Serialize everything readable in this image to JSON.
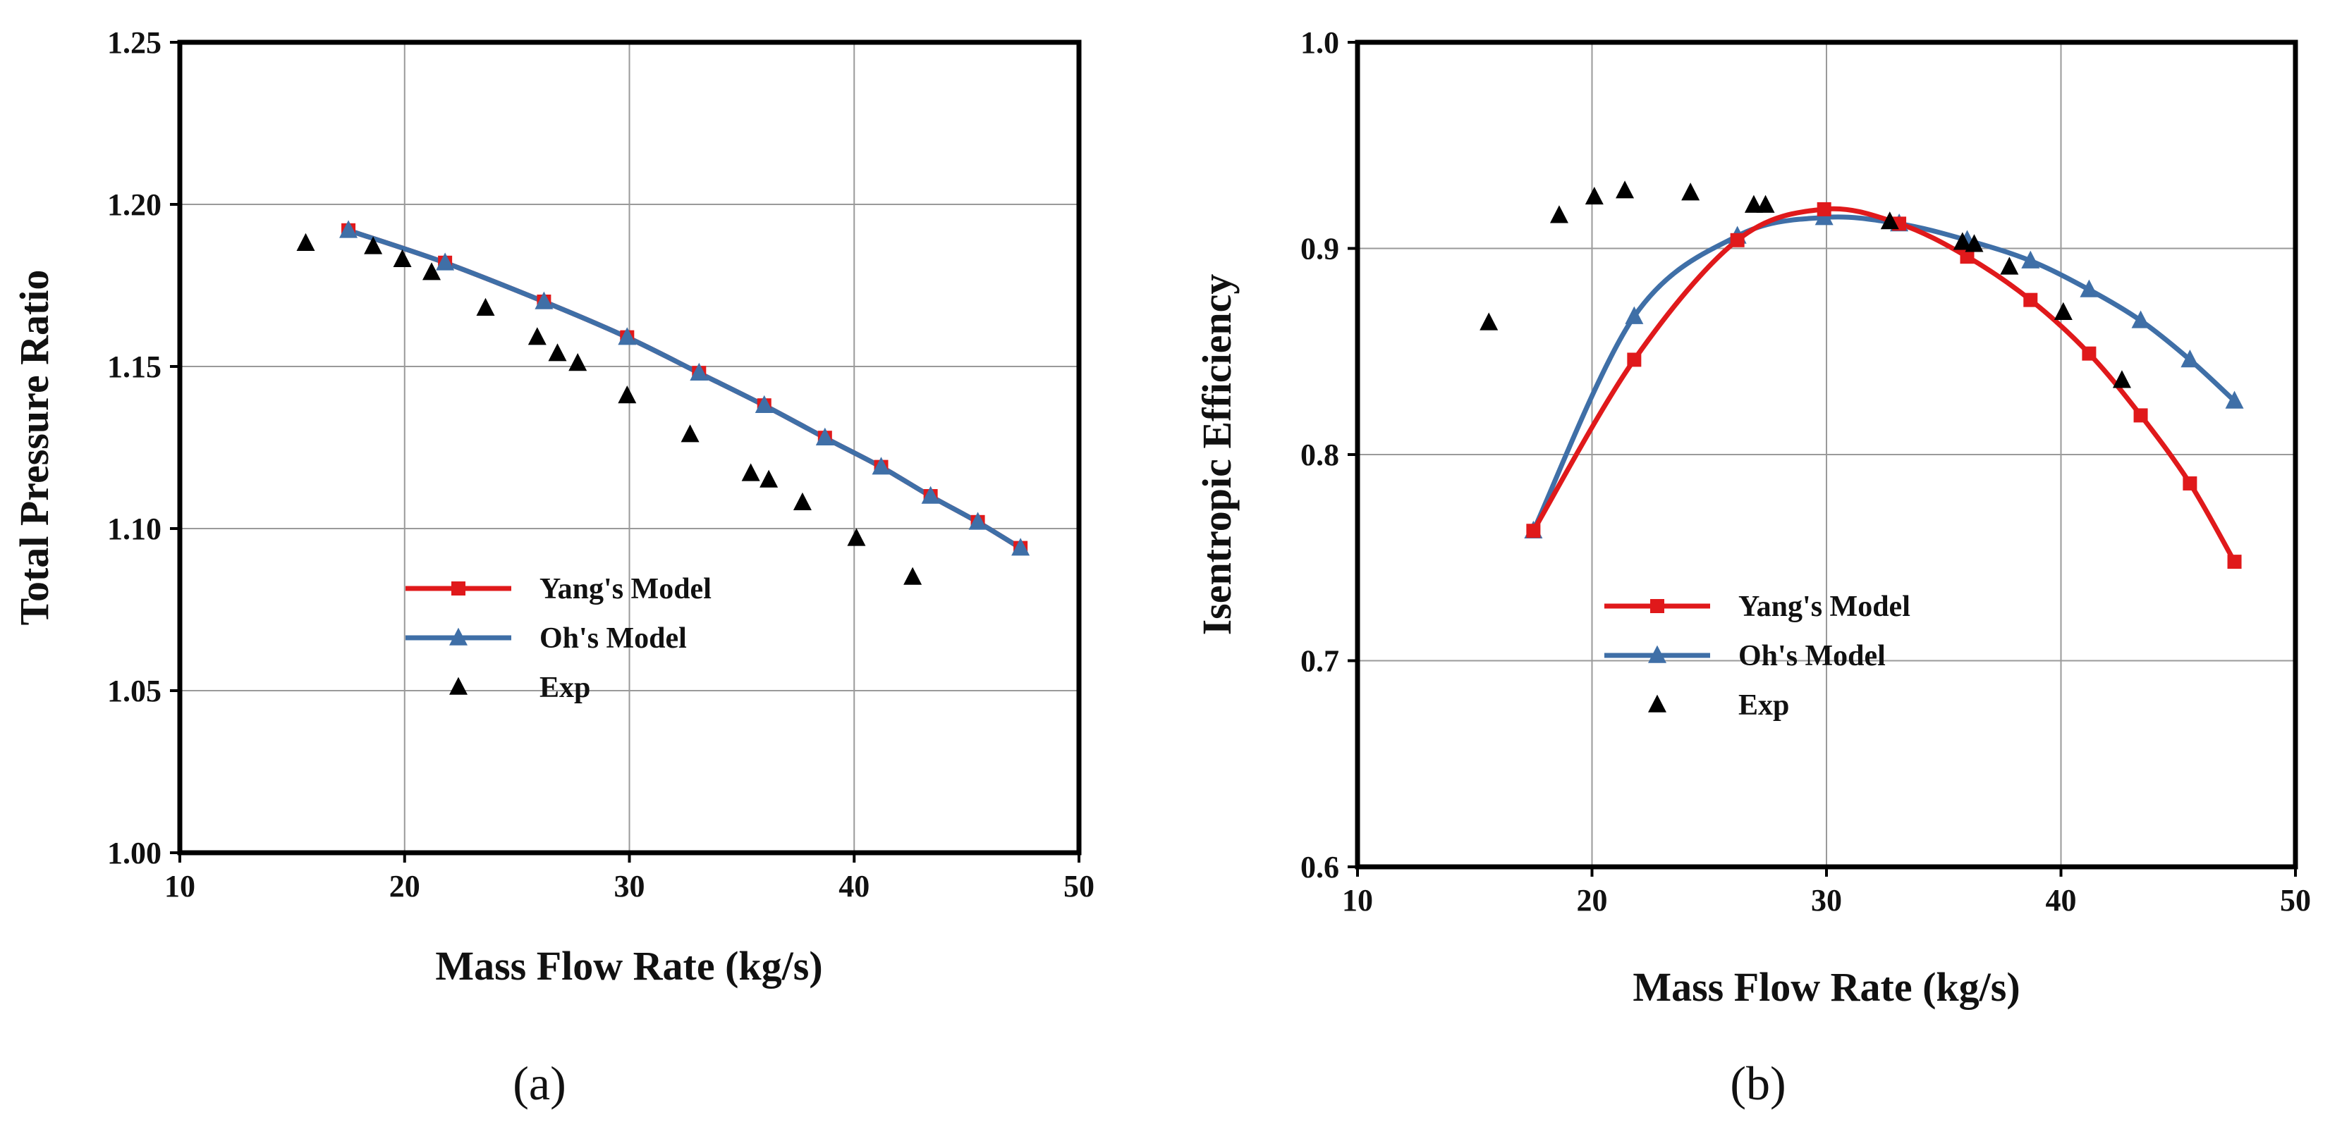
{
  "chart_data": [
    {
      "type": "line",
      "panel_label": "(a)",
      "xlabel": "Mass Flow Rate (kg/s)",
      "ylabel": "Total Pressure Ratio",
      "xlim": [
        10,
        50
      ],
      "ylim": [
        1.0,
        1.25
      ],
      "xticks": [
        10,
        20,
        30,
        40,
        50
      ],
      "yticks": [
        1.0,
        1.05,
        1.1,
        1.15,
        1.2,
        1.25
      ],
      "xtick_labels": [
        "10",
        "20",
        "30",
        "40",
        "50"
      ],
      "ytick_labels": [
        "1.00",
        "1.05",
        "1.10",
        "1.15",
        "1.20",
        "1.25"
      ],
      "grid": true,
      "legend_position": "center-left",
      "series": [
        {
          "name": "Yang's Model",
          "color": "#e0191b",
          "marker": "square",
          "x": [
            17.5,
            21.8,
            26.2,
            29.9,
            33.1,
            36.0,
            38.7,
            41.2,
            43.4,
            45.5,
            47.4
          ],
          "y": [
            1.192,
            1.182,
            1.17,
            1.159,
            1.148,
            1.138,
            1.128,
            1.119,
            1.11,
            1.102,
            1.094
          ]
        },
        {
          "name": "Oh's Model",
          "color": "#3f6fa7",
          "marker": "triangle",
          "x": [
            17.5,
            21.8,
            26.2,
            29.9,
            33.1,
            36.0,
            38.7,
            41.2,
            43.4,
            45.5,
            47.4
          ],
          "y": [
            1.192,
            1.182,
            1.17,
            1.159,
            1.148,
            1.138,
            1.128,
            1.119,
            1.11,
            1.102,
            1.094
          ]
        },
        {
          "name": "Exp",
          "color": "#000000",
          "marker": "triangle",
          "scatter_only": true,
          "x": [
            15.6,
            18.6,
            19.9,
            21.2,
            23.6,
            25.9,
            26.8,
            27.7,
            29.9,
            32.7,
            35.4,
            36.2,
            37.7,
            40.1,
            42.6
          ],
          "y": [
            1.188,
            1.187,
            1.183,
            1.179,
            1.168,
            1.159,
            1.154,
            1.151,
            1.141,
            1.129,
            1.117,
            1.115,
            1.108,
            1.097,
            1.085
          ]
        }
      ]
    },
    {
      "type": "line",
      "panel_label": "(b)",
      "xlabel": "Mass Flow Rate (kg/s)",
      "ylabel": "Isentropic Efficiency",
      "xlim": [
        10,
        50
      ],
      "ylim": [
        0.6,
        1.0
      ],
      "xticks": [
        10,
        20,
        30,
        40,
        50
      ],
      "yticks": [
        0.6,
        0.7,
        0.8,
        0.9,
        1.0
      ],
      "xtick_labels": [
        "10",
        "20",
        "30",
        "40",
        "50"
      ],
      "ytick_labels": [
        "0.6",
        "0.7",
        "0.8",
        "0.9",
        "1.0"
      ],
      "grid": true,
      "legend_position": "center",
      "series": [
        {
          "name": "Yang's Model",
          "color": "#e0191b",
          "marker": "square",
          "x": [
            17.5,
            21.8,
            26.2,
            29.9,
            33.1,
            36.0,
            38.7,
            41.2,
            43.4,
            45.5,
            47.4
          ],
          "y": [
            0.763,
            0.846,
            0.904,
            0.919,
            0.912,
            0.896,
            0.875,
            0.849,
            0.819,
            0.786,
            0.748
          ]
        },
        {
          "name": "Oh's Model",
          "color": "#3f6fa7",
          "marker": "triangle",
          "x": [
            17.5,
            21.8,
            26.2,
            29.9,
            33.1,
            36.0,
            38.7,
            41.2,
            43.4,
            45.5,
            47.4
          ],
          "y": [
            0.763,
            0.867,
            0.906,
            0.915,
            0.912,
            0.904,
            0.894,
            0.88,
            0.865,
            0.846,
            0.826
          ]
        },
        {
          "name": "Exp",
          "color": "#000000",
          "marker": "triangle",
          "scatter_only": true,
          "x": [
            15.6,
            18.6,
            20.1,
            21.4,
            24.2,
            26.9,
            27.4,
            32.7,
            35.8,
            36.3,
            37.8,
            40.1,
            42.6
          ],
          "y": [
            0.864,
            0.916,
            0.925,
            0.928,
            0.927,
            0.921,
            0.921,
            0.913,
            0.903,
            0.902,
            0.891,
            0.869,
            0.836
          ]
        }
      ]
    }
  ]
}
